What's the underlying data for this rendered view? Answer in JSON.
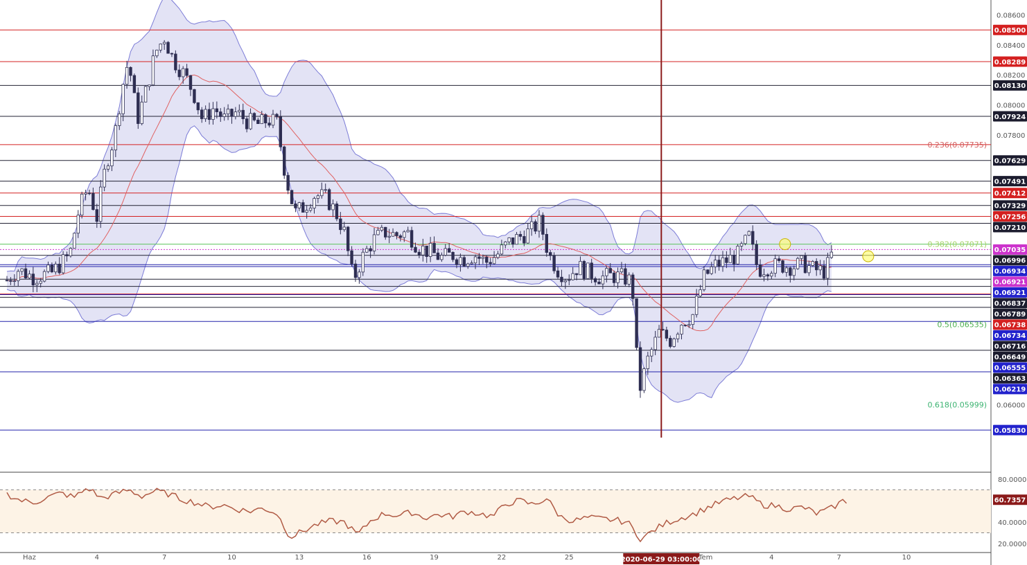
{
  "colors": {
    "bull": "#ffffff",
    "bear": "#2e2e52",
    "candle_border": "#2e2e52",
    "band_fill": "#d9d9f2",
    "band_line": "#7b7bd6",
    "ma_line": "#e06060",
    "level_red": "#d42020",
    "level_black": "#222233",
    "level_blue": "#2222aa",
    "level_green": "#5cc45c",
    "rsi_line": "#b05a44",
    "rsi_band": "#fdf3e6",
    "cursor": "#8b1a1a"
  },
  "chart_data": {
    "type": "candlestick",
    "pair_scale": {
      "ymin": 0.0578,
      "ymax": 0.087
    },
    "price_ticks": [
      "0.08600",
      "0.08400",
      "0.08200",
      "0.08000",
      "0.07800",
      "0.06000"
    ],
    "date_ticks": [
      "Haz",
      "4",
      "7",
      "10",
      "13",
      "16",
      "19",
      "22",
      "25",
      "4",
      "7",
      "10"
    ],
    "date_tick_days": [
      1,
      4,
      7,
      10,
      13,
      16,
      19,
      22,
      25,
      34,
      37,
      40
    ],
    "cursor_label": "2020-06-29 03:00:00",
    "cursor_day": 29.1,
    "cursor_tail": "Tem",
    "levels": [
      {
        "price": 0.085,
        "label": "0.08500",
        "kind": "red"
      },
      {
        "price": 0.08289,
        "label": "0.08289",
        "kind": "red"
      },
      {
        "price": 0.0813,
        "label": "0.08130",
        "kind": "black"
      },
      {
        "price": 0.07924,
        "label": "0.07924",
        "kind": "black"
      },
      {
        "price": 0.07735,
        "label": "",
        "kind": "red"
      },
      {
        "price": 0.07629,
        "label": "0.07629",
        "kind": "black"
      },
      {
        "price": 0.07491,
        "label": "0.07491",
        "kind": "black"
      },
      {
        "price": 0.07412,
        "label": "0.07412",
        "kind": "red"
      },
      {
        "price": 0.07329,
        "label": "0.07329",
        "kind": "black"
      },
      {
        "price": 0.07256,
        "label": "0.07256",
        "kind": "red"
      },
      {
        "price": 0.0721,
        "label": "0.07210",
        "kind": "black"
      },
      {
        "price": 0.07071,
        "label": "",
        "kind": "green"
      },
      {
        "price": 0.07035,
        "label": "0.07035",
        "kind": "magenta"
      },
      {
        "price": 0.06996,
        "label": "0.06996",
        "kind": "black"
      },
      {
        "price": 0.06934,
        "label": "0.06934",
        "kind": "blue"
      },
      {
        "price": 0.06921,
        "label": "0.06921",
        "kind": "magenta"
      },
      {
        "price": 0.06921,
        "label": "0.06921",
        "kind": "blue"
      },
      {
        "price": 0.06837,
        "label": "0.06837",
        "kind": "black"
      },
      {
        "price": 0.06789,
        "label": "0.06789",
        "kind": "black"
      },
      {
        "price": 0.06738,
        "label": "0.06738",
        "kind": "red"
      },
      {
        "price": 0.06734,
        "label": "0.06734",
        "kind": "blue"
      },
      {
        "price": 0.06716,
        "label": "0.06716",
        "kind": "black"
      },
      {
        "price": 0.06649,
        "label": "0.06649",
        "kind": "black"
      },
      {
        "price": 0.06555,
        "label": "0.06555",
        "kind": "blue"
      },
      {
        "price": 0.06363,
        "label": "0.06363",
        "kind": "black"
      },
      {
        "price": 0.06219,
        "label": "0.06219",
        "kind": "blue"
      },
      {
        "price": 0.0583,
        "label": "0.05830",
        "kind": "blue"
      }
    ],
    "fib_labels": [
      {
        "text": "0.236(0.07735)",
        "price": 0.07735,
        "color": "#d46060"
      },
      {
        "text": "0.382(0.07071)",
        "price": 0.07071,
        "color": "#a6d36a"
      },
      {
        "text": "0.5(0.06535)",
        "price": 0.06535,
        "color": "#4caf50"
      },
      {
        "text": "0.618(0.05999)",
        "price": 0.05999,
        "color": "#3cb371"
      }
    ],
    "close_path": [
      [
        0.0,
        0.0683
      ],
      [
        0.5,
        0.069
      ],
      [
        1.2,
        0.0685
      ],
      [
        2.0,
        0.0688
      ],
      [
        2.8,
        0.07
      ],
      [
        3.2,
        0.073
      ],
      [
        3.6,
        0.0745
      ],
      [
        4.0,
        0.0725
      ],
      [
        4.4,
        0.076
      ],
      [
        4.8,
        0.078
      ],
      [
        5.1,
        0.081
      ],
      [
        5.4,
        0.083
      ],
      [
        5.8,
        0.079
      ],
      [
        6.2,
        0.081
      ],
      [
        6.6,
        0.0835
      ],
      [
        7.0,
        0.0845
      ],
      [
        7.4,
        0.083
      ],
      [
        7.9,
        0.082
      ],
      [
        8.3,
        0.0808
      ],
      [
        8.7,
        0.079
      ],
      [
        9.2,
        0.0798
      ],
      [
        9.7,
        0.079
      ],
      [
        10.2,
        0.0795
      ],
      [
        10.7,
        0.0789
      ],
      [
        11.2,
        0.0787
      ],
      [
        11.6,
        0.079
      ],
      [
        12.0,
        0.0788
      ],
      [
        12.4,
        0.0752
      ],
      [
        12.8,
        0.0728
      ],
      [
        13.2,
        0.0732
      ],
      [
        13.7,
        0.074
      ],
      [
        14.2,
        0.0738
      ],
      [
        14.6,
        0.0729
      ],
      [
        15.0,
        0.0715
      ],
      [
        15.4,
        0.0683
      ],
      [
        15.8,
        0.0698
      ],
      [
        16.3,
        0.071
      ],
      [
        16.8,
        0.0715
      ],
      [
        17.3,
        0.0713
      ],
      [
        17.8,
        0.0715
      ],
      [
        18.3,
        0.0705
      ],
      [
        18.8,
        0.0702
      ],
      [
        19.3,
        0.0698
      ],
      [
        19.8,
        0.07
      ],
      [
        20.3,
        0.0697
      ],
      [
        20.8,
        0.07
      ],
      [
        21.3,
        0.0695
      ],
      [
        21.8,
        0.07
      ],
      [
        22.3,
        0.0708
      ],
      [
        22.8,
        0.0712
      ],
      [
        23.3,
        0.0716
      ],
      [
        23.7,
        0.0722
      ],
      [
        24.1,
        0.07
      ],
      [
        24.5,
        0.069
      ],
      [
        24.9,
        0.0685
      ],
      [
        25.4,
        0.0692
      ],
      [
        25.9,
        0.0688
      ],
      [
        26.4,
        0.0685
      ],
      [
        26.9,
        0.0686
      ],
      [
        27.4,
        0.0685
      ],
      [
        27.8,
        0.0682
      ],
      [
        28.1,
        0.0608
      ],
      [
        28.5,
        0.063
      ],
      [
        29.0,
        0.0648
      ],
      [
        29.5,
        0.0643
      ],
      [
        30.0,
        0.0655
      ],
      [
        30.5,
        0.066
      ],
      [
        31.0,
        0.0685
      ],
      [
        31.5,
        0.0693
      ],
      [
        32.0,
        0.0696
      ],
      [
        32.5,
        0.07
      ],
      [
        33.0,
        0.0712
      ],
      [
        33.4,
        0.069
      ],
      [
        33.9,
        0.0692
      ],
      [
        34.4,
        0.0693
      ],
      [
        34.9,
        0.0692
      ],
      [
        35.4,
        0.0694
      ],
      [
        35.9,
        0.069
      ],
      [
        36.4,
        0.0689
      ],
      [
        36.8,
        0.0705
      ]
    ],
    "rsi": {
      "ticks": [
        "80.0000",
        "40.0000",
        "20.0000"
      ],
      "tick_values": [
        80,
        40,
        20
      ],
      "upper": 70,
      "lower": 30,
      "current_label": "60.7357",
      "current": 60.7357,
      "values": [
        [
          0.0,
          66
        ],
        [
          0.6,
          60
        ],
        [
          1.2,
          58
        ],
        [
          1.8,
          63
        ],
        [
          2.4,
          67
        ],
        [
          3.0,
          63
        ],
        [
          3.6,
          72
        ],
        [
          4.2,
          62
        ],
        [
          4.8,
          66
        ],
        [
          5.4,
          70
        ],
        [
          6.0,
          64
        ],
        [
          6.6,
          69
        ],
        [
          7.2,
          66
        ],
        [
          7.8,
          61
        ],
        [
          8.4,
          58
        ],
        [
          9.0,
          54
        ],
        [
          9.6,
          56
        ],
        [
          10.2,
          52
        ],
        [
          10.8,
          50
        ],
        [
          11.4,
          53
        ],
        [
          12.0,
          48
        ],
        [
          12.6,
          26
        ],
        [
          13.2,
          32
        ],
        [
          13.8,
          38
        ],
        [
          14.4,
          41
        ],
        [
          15.0,
          40
        ],
        [
          15.6,
          28
        ],
        [
          16.2,
          42
        ],
        [
          16.8,
          48
        ],
        [
          17.4,
          46
        ],
        [
          18.0,
          49
        ],
        [
          18.6,
          44
        ],
        [
          19.2,
          47
        ],
        [
          19.8,
          45
        ],
        [
          20.4,
          50
        ],
        [
          21.0,
          48
        ],
        [
          21.6,
          45
        ],
        [
          22.2,
          57
        ],
        [
          22.8,
          60
        ],
        [
          23.4,
          56
        ],
        [
          24.0,
          62
        ],
        [
          24.6,
          45
        ],
        [
          25.2,
          41
        ],
        [
          25.8,
          44
        ],
        [
          26.4,
          43
        ],
        [
          27.0,
          42
        ],
        [
          27.6,
          40
        ],
        [
          28.2,
          24
        ],
        [
          28.8,
          33
        ],
        [
          29.4,
          40
        ],
        [
          30.0,
          44
        ],
        [
          30.6,
          48
        ],
        [
          31.2,
          54
        ],
        [
          31.8,
          59
        ],
        [
          32.4,
          62
        ],
        [
          33.0,
          64
        ],
        [
          33.6,
          56
        ],
        [
          34.2,
          55
        ],
        [
          34.8,
          52
        ],
        [
          35.4,
          54
        ],
        [
          36.0,
          48
        ],
        [
          36.6,
          52
        ],
        [
          37.2,
          60
        ],
        [
          37.5,
          58
        ]
      ]
    }
  }
}
